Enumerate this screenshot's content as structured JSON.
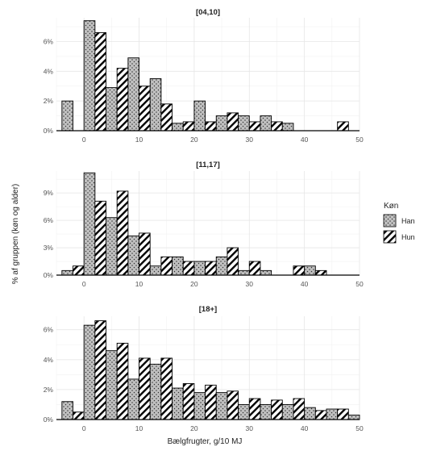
{
  "chart_data": {
    "type": "bar",
    "xlabel": "Bælgfrugter, g/10 MJ",
    "ylabel": "% af gruppen (køn og alder)",
    "xlim": [
      -5,
      50
    ],
    "xticks": [
      0,
      10,
      20,
      30,
      40,
      50
    ],
    "legend": {
      "title": "Køn",
      "position": "right",
      "entries": [
        {
          "key": "han",
          "label": "Han"
        },
        {
          "key": "hun",
          "label": "Hun"
        }
      ]
    },
    "fills": {
      "han": {
        "pattern": "dots",
        "color": "#c0c0c0"
      },
      "hun": {
        "pattern": "stripes",
        "color": "#ffffff"
      }
    },
    "panels": [
      {
        "title": "[04,10]",
        "ylim": [
          0,
          7.6
        ],
        "yticks": [
          0,
          2,
          4,
          6
        ],
        "yticklabels": [
          "0%",
          "2%",
          "4%",
          "6%"
        ],
        "bars": [
          {
            "x": -2,
            "han": 2.0,
            "hun": 0.0
          },
          {
            "x": 2,
            "han": 7.4,
            "hun": 6.6
          },
          {
            "x": 6,
            "han": 2.9,
            "hun": 4.2
          },
          {
            "x": 10,
            "han": 4.9,
            "hun": 3.0
          },
          {
            "x": 14,
            "han": 3.5,
            "hun": 1.8
          },
          {
            "x": 18,
            "han": 0.5,
            "hun": 0.6
          },
          {
            "x": 22,
            "han": 2.0,
            "hun": 0.6
          },
          {
            "x": 26,
            "han": 1.0,
            "hun": 1.2
          },
          {
            "x": 30,
            "han": 1.0,
            "hun": 0.6
          },
          {
            "x": 34,
            "han": 1.0,
            "hun": 0.6
          },
          {
            "x": 38,
            "han": 0.5,
            "hun": 0.0
          },
          {
            "x": 46,
            "han": 0.0,
            "hun": 0.6
          }
        ]
      },
      {
        "title": "[11,17]",
        "ylim": [
          0,
          11.4
        ],
        "yticks": [
          0,
          3,
          6,
          9
        ],
        "yticklabels": [
          "0%",
          "3%",
          "6%",
          "9%"
        ],
        "bars": [
          {
            "x": -2,
            "han": 0.5,
            "hun": 1.0
          },
          {
            "x": 2,
            "han": 11.2,
            "hun": 8.1
          },
          {
            "x": 6,
            "han": 6.3,
            "hun": 9.2
          },
          {
            "x": 10,
            "han": 4.3,
            "hun": 4.6
          },
          {
            "x": 14,
            "han": 1.0,
            "hun": 2.0
          },
          {
            "x": 18,
            "han": 2.0,
            "hun": 1.5
          },
          {
            "x": 22,
            "han": 1.5,
            "hun": 1.5
          },
          {
            "x": 26,
            "han": 2.0,
            "hun": 3.0
          },
          {
            "x": 30,
            "han": 0.5,
            "hun": 1.5
          },
          {
            "x": 34,
            "han": 0.5,
            "hun": 0.0
          },
          {
            "x": 38,
            "han": 0.0,
            "hun": 1.0
          },
          {
            "x": 42,
            "han": 1.0,
            "hun": 0.5
          }
        ]
      },
      {
        "title": "[18+]",
        "ylim": [
          0,
          6.9
        ],
        "yticks": [
          0,
          2,
          4,
          6
        ],
        "yticklabels": [
          "0%",
          "2%",
          "4%",
          "6%"
        ],
        "bars": [
          {
            "x": -2,
            "han": 1.2,
            "hun": 0.5
          },
          {
            "x": 2,
            "han": 6.3,
            "hun": 6.6
          },
          {
            "x": 6,
            "han": 4.6,
            "hun": 5.1
          },
          {
            "x": 10,
            "han": 2.7,
            "hun": 4.1
          },
          {
            "x": 14,
            "han": 3.7,
            "hun": 4.1
          },
          {
            "x": 18,
            "han": 2.1,
            "hun": 2.4
          },
          {
            "x": 22,
            "han": 1.8,
            "hun": 2.3
          },
          {
            "x": 26,
            "han": 1.8,
            "hun": 1.9
          },
          {
            "x": 30,
            "han": 1.0,
            "hun": 1.4
          },
          {
            "x": 34,
            "han": 1.0,
            "hun": 1.3
          },
          {
            "x": 38,
            "han": 1.0,
            "hun": 1.4
          },
          {
            "x": 42,
            "han": 0.8,
            "hun": 0.6
          },
          {
            "x": 46,
            "han": 0.7,
            "hun": 0.7
          },
          {
            "x": 50,
            "han": 0.3,
            "hun": 0.0
          }
        ]
      }
    ]
  }
}
